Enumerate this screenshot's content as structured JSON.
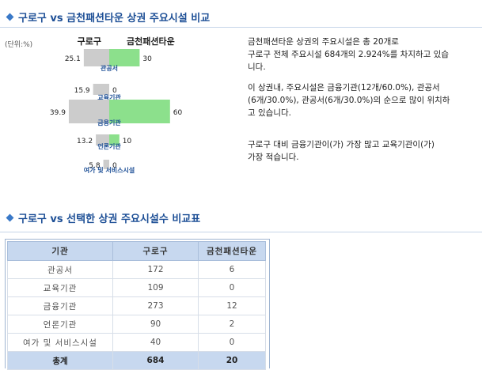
{
  "sections": {
    "chart_title": "구로구 vs 금천패션타운 상권 주요시설 비교",
    "table_title": "구로구 vs 선택한 상권 주요시설수 비교표"
  },
  "unit_label": "(단위:%)",
  "description": {
    "para1_line1": "금천패션타운 상권의 주요시설은 총 20개로",
    "para1_line2": "구로구 전체 주요시설 684개의 2.924%를 차지하고 있습",
    "para1_line3": "니다.",
    "para2_line1": "이 상권내, 주요시설은 금융기관(12개/60.0%), 관공서",
    "para2_line2": "(6개/30.0%), 관공서(6개/30.0%)의 순으로 많이 위치하",
    "para2_line3": "고 있습니다.",
    "para3_line1": "구로구 대비 금융기관이(가) 가장 많고 교육기관이(가)",
    "para3_line2": "가장 적습니다."
  },
  "chart_data": {
    "type": "bar",
    "orientation": "horizontal-butterfly",
    "categories": [
      "관공서",
      "교육기관",
      "금융기관",
      "언론기관",
      "여가 및 서비스시설"
    ],
    "series": [
      {
        "name": "구로구",
        "values": [
          25.1,
          15.9,
          39.9,
          13.2,
          5.8
        ],
        "color": "#cccccc"
      },
      {
        "name": "금천패션타운",
        "values": [
          30,
          0,
          60,
          10,
          0
        ],
        "color": "#8ce08c"
      }
    ],
    "label_color": "#1d4f96"
  },
  "table": {
    "headers": [
      "기관",
      "구로구",
      "금천패션타운"
    ],
    "rows": [
      [
        "관공서",
        "172",
        "6"
      ],
      [
        "교육기관",
        "109",
        "0"
      ],
      [
        "금융기관",
        "273",
        "12"
      ],
      [
        "언론기관",
        "90",
        "2"
      ],
      [
        "여가 및 서비스시설",
        "40",
        "0"
      ]
    ],
    "total": [
      "총계",
      "684",
      "20"
    ]
  }
}
